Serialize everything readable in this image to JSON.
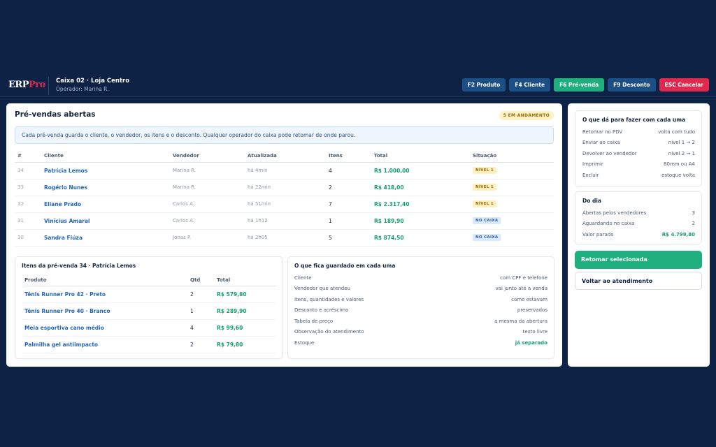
{
  "header": {
    "logo_main": "ERP",
    "logo_accent": "Pro",
    "title": "Caixa 02 · Loja Centro",
    "operator": "Operador: Marina R.",
    "actions": [
      {
        "label": "F2 Produto"
      },
      {
        "label": "F4 Cliente"
      },
      {
        "label": "F6 Pré-venda"
      },
      {
        "label": "F9 Desconto"
      },
      {
        "label": "ESC Cancelar"
      }
    ]
  },
  "main": {
    "title": "Pré-vendas abertas",
    "count_badge": "5 EM ANDAMENTO",
    "info": "Cada pré-venda guarda o cliente, o vendedor, os itens e o desconto. Qualquer operador do caixa pode retomar de onde parou.",
    "columns": [
      "#",
      "Cliente",
      "Vendedor",
      "Atualizada",
      "Itens",
      "Total",
      "Situação"
    ],
    "rows": [
      {
        "num": "34",
        "cliente": "Patrícia Lemos",
        "vendedor": "Marina R.",
        "atualizada": "há 4min",
        "itens": "4",
        "total": "R$ 1.000,00",
        "situacao": "NÍVEL 1"
      },
      {
        "num": "33",
        "cliente": "Rogério Nunes",
        "vendedor": "Marina R.",
        "atualizada": "há 22min",
        "itens": "2",
        "total": "R$ 418,00",
        "situacao": "NÍVEL 1"
      },
      {
        "num": "32",
        "cliente": "Eliane Prado",
        "vendedor": "Carlos A.",
        "atualizada": "há 51min",
        "itens": "7",
        "total": "R$ 2.317,40",
        "situacao": "NÍVEL 1"
      },
      {
        "num": "31",
        "cliente": "Vinícius Amaral",
        "vendedor": "Carlos A.",
        "atualizada": "há 1h12",
        "itens": "1",
        "total": "R$ 189,90",
        "situacao": "NO CAIXA"
      },
      {
        "num": "30",
        "cliente": "Sandra Fiúza",
        "vendedor": "Jonas P.",
        "atualizada": "há 2h05",
        "itens": "5",
        "total": "R$ 874,50",
        "situacao": "NO CAIXA"
      }
    ]
  },
  "items_panel": {
    "title": "Itens da pré-venda 34 · Patrícia Lemos",
    "columns": [
      "Produto",
      "Qtd",
      "Total"
    ],
    "rows": [
      {
        "produto": "Tênis Runner Pro 42 · Preto",
        "qtd": "2",
        "total": "R$ 579,80"
      },
      {
        "produto": "Tênis Runner Pro 40 · Branco",
        "qtd": "1",
        "total": "R$ 289,90"
      },
      {
        "produto": "Meia esportiva cano médio",
        "qtd": "4",
        "total": "R$ 99,60"
      },
      {
        "produto": "Palmilha gel antiimpacto",
        "qtd": "2",
        "total": "R$ 79,80"
      }
    ]
  },
  "stored_panel": {
    "title": "O que fica guardado em cada uma",
    "rows": [
      {
        "k": "Cliente",
        "v": "com CPF e telefone"
      },
      {
        "k": "Vendedor que atendeu",
        "v": "vai junto até a venda"
      },
      {
        "k": "Itens, quantidades e valores",
        "v": "como estavam"
      },
      {
        "k": "Desconto e acréscimo",
        "v": "preservados"
      },
      {
        "k": "Tabela de preço",
        "v": "a mesma da abertura"
      },
      {
        "k": "Observação do atendimento",
        "v": "texto livre"
      },
      {
        "k": "Estoque",
        "v": "já separado"
      }
    ]
  },
  "side": {
    "actions_title": "O que dá para fazer com cada uma",
    "actions": [
      {
        "k": "Retomar no PDV",
        "v": "volta com tudo"
      },
      {
        "k": "Enviar ao caixa",
        "v": "nível 1 → 2"
      },
      {
        "k": "Devolver ao vendedor",
        "v": "nível 2 → 1"
      },
      {
        "k": "Imprimir",
        "v": "80mm ou A4"
      },
      {
        "k": "Excluir",
        "v": "estoque volta"
      }
    ],
    "day_title": "Do dia",
    "day": [
      {
        "k": "Abertas pelos vendedores",
        "v": "3"
      },
      {
        "k": "Aguardando no caixa",
        "v": "2"
      },
      {
        "k": "Valor parado",
        "v": "R$ 4.799,80"
      }
    ],
    "primary_button": "Retomar selecionada",
    "secondary_button": "Voltar ao atendimento"
  },
  "colors": {
    "background": "#0d2244",
    "accent_green": "#1fae7e",
    "accent_red": "#e0294f",
    "link_blue": "#2467c2"
  }
}
